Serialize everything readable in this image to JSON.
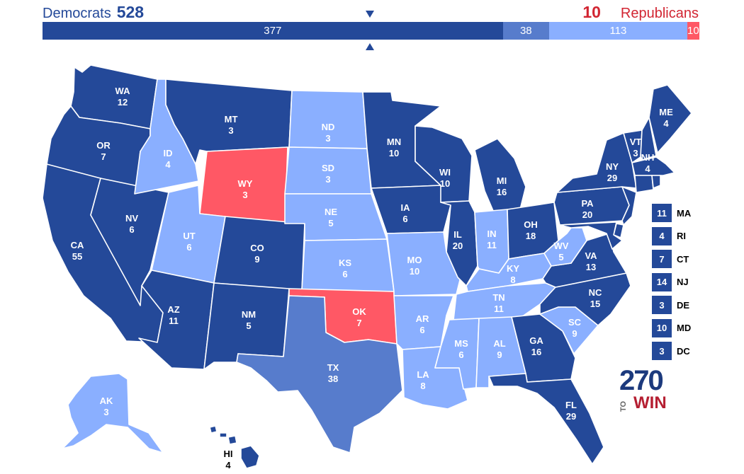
{
  "header": {
    "dem_label": "Democrats",
    "dem_total": "528",
    "rep_total": "10",
    "rep_label": "Republicans"
  },
  "colors": {
    "safe_dem": "#244999",
    "likely_dem": "#577CCC",
    "lean_dem": "#8AAFFF",
    "rep": "#FF5865"
  },
  "bar": [
    {
      "label": "377",
      "value": 377,
      "color": "#244999"
    },
    {
      "label": "38",
      "value": 38,
      "color": "#577CCC"
    },
    {
      "label": "113",
      "value": 113,
      "color": "#8AAFFF"
    },
    {
      "label": "10",
      "value": 10,
      "color": "#FF5865"
    }
  ],
  "states": {
    "WA": {
      "abbr": "WA",
      "ev": "12"
    },
    "OR": {
      "abbr": "OR",
      "ev": "7"
    },
    "CA": {
      "abbr": "CA",
      "ev": "55"
    },
    "NV": {
      "abbr": "NV",
      "ev": "6"
    },
    "ID": {
      "abbr": "ID",
      "ev": "4"
    },
    "MT": {
      "abbr": "MT",
      "ev": "3"
    },
    "WY": {
      "abbr": "WY",
      "ev": "3"
    },
    "UT": {
      "abbr": "UT",
      "ev": "6"
    },
    "AZ": {
      "abbr": "AZ",
      "ev": "11"
    },
    "CO": {
      "abbr": "CO",
      "ev": "9"
    },
    "NM": {
      "abbr": "NM",
      "ev": "5"
    },
    "ND": {
      "abbr": "ND",
      "ev": "3"
    },
    "SD": {
      "abbr": "SD",
      "ev": "3"
    },
    "NE": {
      "abbr": "NE",
      "ev": "5"
    },
    "KS": {
      "abbr": "KS",
      "ev": "6"
    },
    "OK": {
      "abbr": "OK",
      "ev": "7"
    },
    "TX": {
      "abbr": "TX",
      "ev": "38"
    },
    "MN": {
      "abbr": "MN",
      "ev": "10"
    },
    "IA": {
      "abbr": "IA",
      "ev": "6"
    },
    "MO": {
      "abbr": "MO",
      "ev": "10"
    },
    "AR": {
      "abbr": "AR",
      "ev": "6"
    },
    "LA": {
      "abbr": "LA",
      "ev": "8"
    },
    "WI": {
      "abbr": "WI",
      "ev": "10"
    },
    "IL": {
      "abbr": "IL",
      "ev": "20"
    },
    "MI": {
      "abbr": "MI",
      "ev": "16"
    },
    "IN": {
      "abbr": "IN",
      "ev": "11"
    },
    "OH": {
      "abbr": "OH",
      "ev": "18"
    },
    "KY": {
      "abbr": "KY",
      "ev": "8"
    },
    "TN": {
      "abbr": "TN",
      "ev": "11"
    },
    "MS": {
      "abbr": "MS",
      "ev": "6"
    },
    "AL": {
      "abbr": "AL",
      "ev": "9"
    },
    "GA": {
      "abbr": "GA",
      "ev": "16"
    },
    "FL": {
      "abbr": "FL",
      "ev": "29"
    },
    "SC": {
      "abbr": "SC",
      "ev": "9"
    },
    "NC": {
      "abbr": "NC",
      "ev": "15"
    },
    "VA": {
      "abbr": "VA",
      "ev": "13"
    },
    "WV": {
      "abbr": "WV",
      "ev": "5"
    },
    "PA": {
      "abbr": "PA",
      "ev": "20"
    },
    "NY": {
      "abbr": "NY",
      "ev": "29"
    },
    "VT": {
      "abbr": "VT",
      "ev": "3"
    },
    "NH": {
      "abbr": "NH",
      "ev": "4"
    },
    "ME": {
      "abbr": "ME",
      "ev": "4"
    },
    "AK": {
      "abbr": "AK",
      "ev": "3"
    },
    "HI": {
      "abbr": "HI",
      "ev": "4"
    }
  },
  "small_states": [
    {
      "ev": "11",
      "name": "MA"
    },
    {
      "ev": "4",
      "name": "RI"
    },
    {
      "ev": "7",
      "name": "CT"
    },
    {
      "ev": "14",
      "name": "NJ"
    },
    {
      "ev": "3",
      "name": "DE"
    },
    {
      "ev": "10",
      "name": "MD"
    },
    {
      "ev": "3",
      "name": "DC"
    }
  ],
  "logo": {
    "number": "270",
    "to": "TO",
    "win": "WIN"
  }
}
